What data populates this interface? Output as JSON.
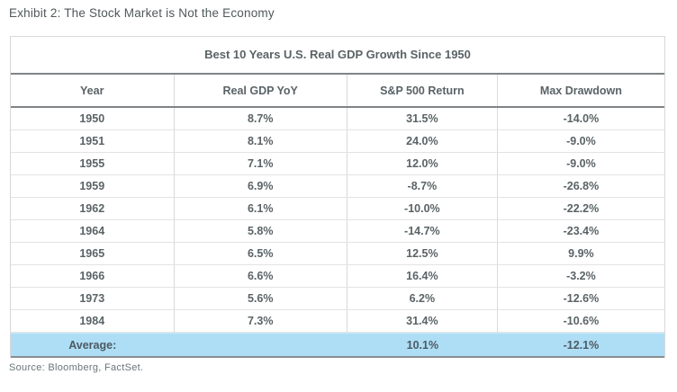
{
  "page": {
    "exhibit_title": "Exhibit 2: The Stock Market is Not the Economy",
    "source": "Source: Bloomberg, FactSet."
  },
  "table": {
    "title": "Best 10 Years U.S. Real GDP Growth Since 1950",
    "columns": {
      "year": "Year",
      "gdp": "Real GDP YoY",
      "sp500": "S&P 500 Return",
      "drawdown": "Max Drawdown"
    },
    "rows": [
      {
        "year": "1950",
        "gdp": "8.7%",
        "sp500": "31.5%",
        "drawdown": "-14.0%"
      },
      {
        "year": "1951",
        "gdp": "8.1%",
        "sp500": "24.0%",
        "drawdown": "-9.0%"
      },
      {
        "year": "1955",
        "gdp": "7.1%",
        "sp500": "12.0%",
        "drawdown": "-9.0%"
      },
      {
        "year": "1959",
        "gdp": "6.9%",
        "sp500": "-8.7%",
        "drawdown": "-26.8%"
      },
      {
        "year": "1962",
        "gdp": "6.1%",
        "sp500": "-10.0%",
        "drawdown": "-22.2%"
      },
      {
        "year": "1964",
        "gdp": "5.8%",
        "sp500": "-14.7%",
        "drawdown": "-23.4%"
      },
      {
        "year": "1965",
        "gdp": "6.5%",
        "sp500": "12.5%",
        "drawdown": "9.9%"
      },
      {
        "year": "1966",
        "gdp": "6.6%",
        "sp500": "16.4%",
        "drawdown": "-3.2%"
      },
      {
        "year": "1973",
        "gdp": "5.6%",
        "sp500": "6.2%",
        "drawdown": "-12.6%"
      },
      {
        "year": "1984",
        "gdp": "7.3%",
        "sp500": "31.4%",
        "drawdown": "-10.6%"
      }
    ],
    "average": {
      "label": "Average:",
      "gdp": "",
      "sp500": "10.1%",
      "drawdown": "-12.1%"
    }
  },
  "colors": {
    "average_row_bg": "#aedef5",
    "average_top_border": "#cdeaf9",
    "average_text_color": "#4d5a62",
    "dark_border": "#7f8487",
    "bottom_border": "#8a8e90",
    "outer_border": "#d9d9d9",
    "divider": "#d9d9d9",
    "row_border": "#e3e3e3",
    "text_color": "#5a6366",
    "exhibit_title_color": "#4f585a",
    "source_color": "#68757a"
  },
  "chart_data": {
    "type": "table",
    "title": "Best 10 Years U.S. Real GDP Growth Since 1950",
    "columns": [
      "Year",
      "Real GDP YoY",
      "S&P 500 Return",
      "Max Drawdown"
    ],
    "units": "percent",
    "rows": [
      {
        "year": 1950,
        "real_gdp_yoy": 8.7,
        "sp500_return": 31.5,
        "max_drawdown": -14.0
      },
      {
        "year": 1951,
        "real_gdp_yoy": 8.1,
        "sp500_return": 24.0,
        "max_drawdown": -9.0
      },
      {
        "year": 1955,
        "real_gdp_yoy": 7.1,
        "sp500_return": 12.0,
        "max_drawdown": -9.0
      },
      {
        "year": 1959,
        "real_gdp_yoy": 6.9,
        "sp500_return": -8.7,
        "max_drawdown": -26.8
      },
      {
        "year": 1962,
        "real_gdp_yoy": 6.1,
        "sp500_return": -10.0,
        "max_drawdown": -22.2
      },
      {
        "year": 1964,
        "real_gdp_yoy": 5.8,
        "sp500_return": -14.7,
        "max_drawdown": -23.4
      },
      {
        "year": 1965,
        "real_gdp_yoy": 6.5,
        "sp500_return": 12.5,
        "max_drawdown": 9.9
      },
      {
        "year": 1966,
        "real_gdp_yoy": 6.6,
        "sp500_return": 16.4,
        "max_drawdown": -3.2
      },
      {
        "year": 1973,
        "real_gdp_yoy": 5.6,
        "sp500_return": 6.2,
        "max_drawdown": -12.6
      },
      {
        "year": 1984,
        "real_gdp_yoy": 7.3,
        "sp500_return": 31.4,
        "max_drawdown": -10.6
      }
    ],
    "average_row": {
      "label": "Average:",
      "real_gdp_yoy": null,
      "sp500_return": 10.1,
      "max_drawdown": -12.1
    },
    "highlight": "average row highlighted light blue"
  }
}
